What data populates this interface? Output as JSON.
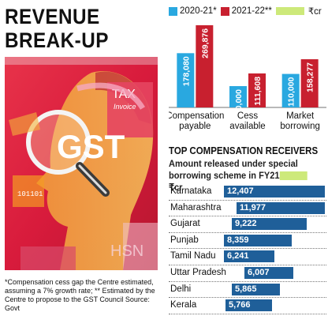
{
  "headline": {
    "line1": "REVENUE",
    "line2": "BREAK-UP"
  },
  "illustration": {
    "tax_label": "TAX",
    "invoice_label": "Invoice",
    "gst_label": "GST",
    "code_label": "101101",
    "hsn_label": "HSN"
  },
  "footnote": {
    "line1": "*Compensation cess gap the Centre estimated,",
    "line2": "assuming a 7% growth rate; ** Estimated by the",
    "line3": "Centre to propose to the GST Council Source: Govt"
  },
  "legend": {
    "unit": "₹cr"
  },
  "receivers_title": "TOP COMPENSATION RECEIVERS",
  "receivers_subtitle_line1": "Amount released under special",
  "receivers_subtitle_line2": "borrowing scheme in FY21",
  "receivers_unit": "₹cr",
  "colors": {
    "blue_light": "#29a8e0",
    "red": "#c8202f",
    "navy": "#1f5f99",
    "highlight": "#cde97a"
  },
  "chart_data": [
    {
      "type": "bar",
      "categories": [
        "Compensation payable",
        "Cess available",
        "Market borrowing"
      ],
      "category_lines": [
        [
          "Compensation",
          "payable"
        ],
        [
          "Cess",
          "available"
        ],
        [
          "Market",
          "borrowing"
        ]
      ],
      "series": [
        {
          "name": "2020-21*",
          "values": [
            178080,
            70000,
            110000
          ],
          "labels": [
            "178,080",
            "70,000",
            "110,000"
          ],
          "color": "#29a8e0"
        },
        {
          "name": "2021-22**",
          "values": [
            269876,
            111608,
            158277
          ],
          "labels": [
            "269,876",
            "111,608",
            "158,277"
          ],
          "color": "#c8202f"
        }
      ],
      "ylim": [
        0,
        280000
      ],
      "unit": "₹cr"
    },
    {
      "type": "bar",
      "orientation": "horizontal",
      "categories": [
        "Karnataka",
        "Maharashtra",
        "Gujarat",
        "Punjab",
        "Tamil Nadu",
        "Uttar Pradesh",
        "Delhi",
        "Kerala"
      ],
      "values": [
        12407,
        11977,
        9222,
        8359,
        6241,
        6007,
        5865,
        5766
      ],
      "labels": [
        "12,407",
        "11,977",
        "9,222",
        "8,359",
        "6,241",
        "6,007",
        "5,865",
        "5,766"
      ],
      "xlim": [
        0,
        12407
      ],
      "unit": "₹cr"
    }
  ]
}
